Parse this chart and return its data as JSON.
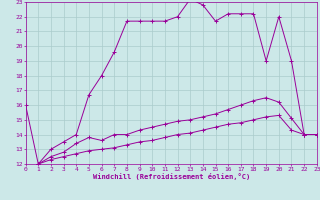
{
  "xlabel": "Windchill (Refroidissement éolien,°C)",
  "background_color": "#cce8e8",
  "grid_color": "#aacccc",
  "line_color": "#990099",
  "xlim": [
    0,
    23
  ],
  "ylim": [
    12,
    23
  ],
  "xticks": [
    0,
    1,
    2,
    3,
    4,
    5,
    6,
    7,
    8,
    9,
    10,
    11,
    12,
    13,
    14,
    15,
    16,
    17,
    18,
    19,
    20,
    21,
    22,
    23
  ],
  "yticks": [
    12,
    13,
    14,
    15,
    16,
    17,
    18,
    19,
    20,
    21,
    22,
    23
  ],
  "series": [
    {
      "x": [
        0,
        1,
        2,
        3,
        4,
        5,
        6,
        7,
        8,
        9,
        10,
        11,
        12,
        13,
        14,
        15,
        16,
        17,
        18,
        19,
        20,
        21,
        22,
        23
      ],
      "y": [
        16,
        12,
        13,
        13.5,
        14,
        16.7,
        18,
        19.6,
        21.7,
        21.7,
        21.7,
        21.7,
        22,
        23.2,
        22.8,
        21.7,
        22.2,
        22.2,
        22.2,
        19,
        22,
        19,
        14,
        14
      ]
    },
    {
      "x": [
        1,
        2,
        3,
        4,
        5,
        6,
        7,
        8,
        9,
        10,
        11,
        12,
        13,
        14,
        15,
        16,
        17,
        18,
        19,
        20,
        21,
        22,
        23
      ],
      "y": [
        12,
        12.5,
        12.8,
        13.4,
        13.8,
        13.6,
        14,
        14,
        14.3,
        14.5,
        14.7,
        14.9,
        15,
        15.2,
        15.4,
        15.7,
        16,
        16.3,
        16.5,
        16.2,
        15.1,
        14,
        14
      ]
    },
    {
      "x": [
        1,
        2,
        3,
        4,
        5,
        6,
        7,
        8,
        9,
        10,
        11,
        12,
        13,
        14,
        15,
        16,
        17,
        18,
        19,
        20,
        21,
        22,
        23
      ],
      "y": [
        12,
        12.3,
        12.5,
        12.7,
        12.9,
        13.0,
        13.1,
        13.3,
        13.5,
        13.6,
        13.8,
        14.0,
        14.1,
        14.3,
        14.5,
        14.7,
        14.8,
        15.0,
        15.2,
        15.3,
        14.3,
        14,
        14
      ]
    }
  ]
}
